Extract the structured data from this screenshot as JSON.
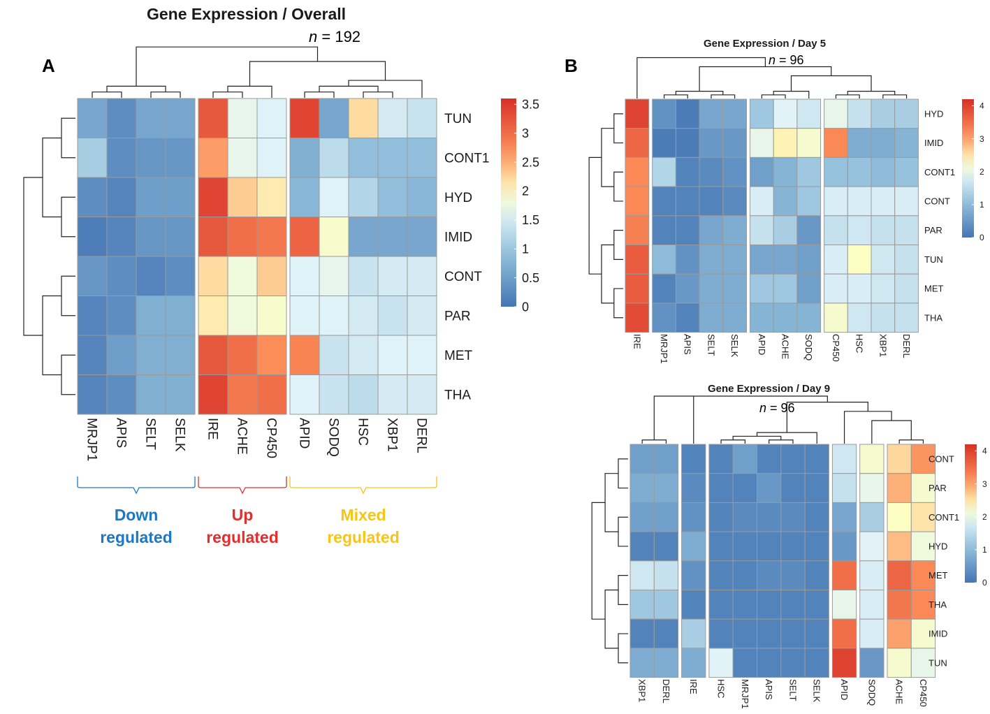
{
  "figure": {
    "panel_a": "A",
    "panel_b": "B",
    "n_italic": "n",
    "n_equals": " = "
  },
  "chart_data": [
    {
      "type": "heatmap",
      "title": "Gene Expression / Overall",
      "n": "192",
      "columns": [
        "MRJP1",
        "APIS",
        "SELT",
        "SELK",
        "IRE",
        "ACHE",
        "CP450",
        "APID",
        "SODQ",
        "HSC",
        "XBP1",
        "DERL"
      ],
      "rows": [
        "TUN",
        "CONT1",
        "HYD",
        "IMID",
        "CONT",
        "PAR",
        "MET",
        "THA"
      ],
      "col_blocks": [
        4,
        3,
        5
      ],
      "values": [
        [
          0.6,
          0.3,
          0.6,
          0.6,
          3.2,
          1.7,
          1.6,
          3.4,
          0.6,
          2.2,
          1.5,
          1.4
        ],
        [
          1.1,
          0.3,
          0.4,
          0.4,
          2.6,
          1.7,
          1.6,
          0.7,
          1.3,
          0.9,
          0.9,
          0.9
        ],
        [
          0.3,
          0.2,
          0.5,
          0.5,
          3.4,
          2.3,
          2.1,
          0.8,
          1.6,
          1.2,
          0.9,
          0.8
        ],
        [
          0.1,
          0.2,
          0.4,
          0.4,
          3.2,
          3.0,
          2.9,
          3.1,
          1.9,
          0.6,
          0.6,
          0.6
        ],
        [
          0.4,
          0.3,
          0.2,
          0.3,
          2.2,
          1.8,
          2.3,
          1.6,
          1.7,
          1.4,
          1.5,
          1.5
        ],
        [
          0.2,
          0.3,
          0.7,
          0.7,
          2.1,
          1.8,
          1.9,
          1.6,
          1.6,
          1.5,
          1.4,
          1.5
        ],
        [
          0.2,
          0.5,
          0.7,
          0.7,
          3.2,
          3.0,
          2.7,
          2.8,
          1.4,
          1.5,
          1.6,
          1.6
        ],
        [
          0.2,
          0.3,
          0.7,
          0.7,
          3.4,
          2.9,
          3.0,
          1.6,
          1.4,
          1.3,
          1.5,
          1.5
        ]
      ],
      "legend": {
        "ticks": [
          "3.5",
          "3",
          "2.5",
          "2",
          "1.5",
          "1",
          "0.5",
          "0"
        ],
        "min": 0,
        "max": 3.6
      },
      "groups": [
        {
          "line1": "Down",
          "line2": "regulated",
          "color": "#1f77c4"
        },
        {
          "line1": "Up",
          "line2": "regulated",
          "color": "#e52d2d"
        },
        {
          "line1": "Mixed",
          "line2": "regulated",
          "color": "#f5c518"
        }
      ]
    },
    {
      "type": "heatmap",
      "title": "Gene Expression / Day 5",
      "n": "96",
      "columns": [
        "IRE",
        "MRJP1",
        "APIS",
        "SELT",
        "SELK",
        "APID",
        "ACHE",
        "SODQ",
        "CP450",
        "HSC",
        "XBP1",
        "DERL"
      ],
      "rows": [
        "HYD",
        "IMID",
        "CONT1",
        "CONT",
        "PAR",
        "TUN",
        "MET",
        "THA"
      ],
      "col_blocks": [
        1,
        4,
        3,
        4
      ],
      "values": [
        [
          4.0,
          0.4,
          0.1,
          0.7,
          0.7,
          1.2,
          1.9,
          1.7,
          2.0,
          1.6,
          1.3,
          1.3
        ],
        [
          3.6,
          0.1,
          0.1,
          0.5,
          0.5,
          2.0,
          2.4,
          2.2,
          3.2,
          0.8,
          0.8,
          0.9
        ],
        [
          3.2,
          1.4,
          0.2,
          0.3,
          0.4,
          0.6,
          0.9,
          1.2,
          1.1,
          1.1,
          1.0,
          1.1
        ],
        [
          3.2,
          0.2,
          0.2,
          0.2,
          0.3,
          1.8,
          0.9,
          1.2,
          1.8,
          1.8,
          1.8,
          1.8
        ],
        [
          3.3,
          0.2,
          0.2,
          0.7,
          0.8,
          1.6,
          1.3,
          0.5,
          1.6,
          1.7,
          1.6,
          1.6
        ],
        [
          3.7,
          1.0,
          0.4,
          0.8,
          0.8,
          0.7,
          0.7,
          0.6,
          1.8,
          2.3,
          1.7,
          1.6
        ],
        [
          3.7,
          0.2,
          0.5,
          0.8,
          0.8,
          1.2,
          1.2,
          0.6,
          1.8,
          1.8,
          1.7,
          1.6
        ],
        [
          3.9,
          0.4,
          0.2,
          0.8,
          0.8,
          0.9,
          0.9,
          0.9,
          2.2,
          1.7,
          1.6,
          1.6
        ]
      ],
      "legend": {
        "ticks": [
          "4",
          "3",
          "2",
          "1",
          "0"
        ],
        "min": 0,
        "max": 4.2
      }
    },
    {
      "type": "heatmap",
      "title": "Gene Expression / Day 9",
      "n": "96",
      "columns": [
        "XBP1",
        "DERL",
        "IRE",
        "HSC",
        "MRJP1",
        "APIS",
        "SELT",
        "SELK",
        "APID",
        "SODQ",
        "ACHE",
        "CP450"
      ],
      "rows": [
        "CONT",
        "PAR",
        "CONT1",
        "HYD",
        "MET",
        "THA",
        "IMID",
        "TUN"
      ],
      "col_blocks": [
        2,
        1,
        5,
        1,
        1,
        2
      ],
      "values": [
        [
          0.6,
          0.6,
          0.2,
          0.2,
          0.6,
          0.2,
          0.2,
          0.2,
          1.7,
          2.2,
          2.6,
          3.1
        ],
        [
          0.8,
          0.8,
          0.3,
          0.2,
          0.2,
          0.5,
          0.2,
          0.2,
          1.6,
          2.0,
          2.9,
          2.2
        ],
        [
          0.6,
          0.6,
          0.4,
          0.2,
          0.3,
          0.3,
          0.3,
          0.2,
          0.7,
          1.3,
          2.3,
          2.5
        ],
        [
          0.2,
          0.2,
          0.8,
          0.2,
          0.2,
          0.2,
          0.2,
          0.2,
          0.5,
          1.9,
          2.8,
          2.1
        ],
        [
          1.7,
          1.6,
          0.4,
          0.2,
          0.2,
          0.3,
          0.3,
          0.2,
          3.5,
          1.8,
          3.6,
          3.2
        ],
        [
          1.2,
          1.2,
          0.2,
          0.2,
          0.2,
          0.2,
          0.2,
          0.2,
          2.0,
          1.8,
          3.4,
          3.2
        ],
        [
          0.2,
          0.2,
          1.3,
          0.2,
          0.2,
          0.2,
          0.2,
          0.2,
          3.5,
          1.8,
          3.0,
          2.2
        ],
        [
          0.8,
          0.8,
          0.8,
          1.9,
          0.2,
          0.2,
          0.2,
          0.2,
          4.0,
          0.5,
          2.2,
          2.0
        ]
      ],
      "legend": {
        "ticks": [
          "4",
          "3",
          "2",
          "1",
          "0"
        ],
        "min": 0,
        "max": 4.2
      }
    }
  ]
}
